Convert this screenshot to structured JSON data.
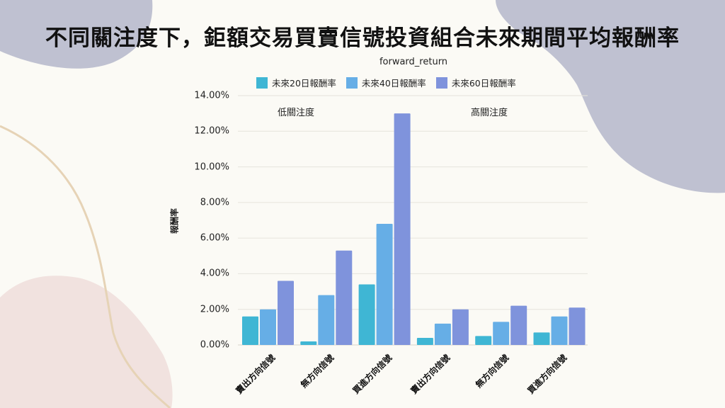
{
  "page": {
    "title": "不同關注度下，鉅額交易買賣信號投資組合未來期間平均報酬率",
    "subtitle": "forward_return"
  },
  "colors": {
    "background": "#fbfaf5",
    "blob_gray": "#bfc1d1",
    "blob_pink": "#f1e2df",
    "curve_tan": "#e6d3b6",
    "gridline": "#e6e3dc",
    "series_20": "#3fb6d4",
    "series_40": "#66aee6",
    "series_60": "#7f93dc"
  },
  "chart_data": {
    "type": "bar",
    "title": "不同關注度下，鉅額交易買賣信號投資組合未來期間平均報酬率",
    "subtitle": "forward_return",
    "xlabel": "",
    "ylabel": "報酬率",
    "ylim": [
      0,
      14
    ],
    "yticks": [
      "0.00%",
      "2.00%",
      "4.00%",
      "6.00%",
      "8.00%",
      "10.00%",
      "12.00%",
      "14.00%"
    ],
    "grid": true,
    "legend_position": "top",
    "group_labels": [
      "低關注度",
      "高關注度"
    ],
    "categories": [
      "賣出方向信號",
      "無方向信號",
      "買進方向信號",
      "賣出方向信號",
      "無方向信號",
      "買進方向信號"
    ],
    "series": [
      {
        "name": "未來20日報酬率",
        "color": "#3fb6d4",
        "values": [
          1.6,
          0.2,
          3.4,
          0.4,
          0.5,
          0.7
        ]
      },
      {
        "name": "未來40日報酬率",
        "color": "#66aee6",
        "values": [
          2.0,
          2.8,
          6.8,
          1.2,
          1.3,
          1.6
        ]
      },
      {
        "name": "未來60日報酬率",
        "color": "#7f93dc",
        "values": [
          3.6,
          5.3,
          13.0,
          2.0,
          2.2,
          2.1
        ]
      }
    ],
    "unit": "%"
  }
}
